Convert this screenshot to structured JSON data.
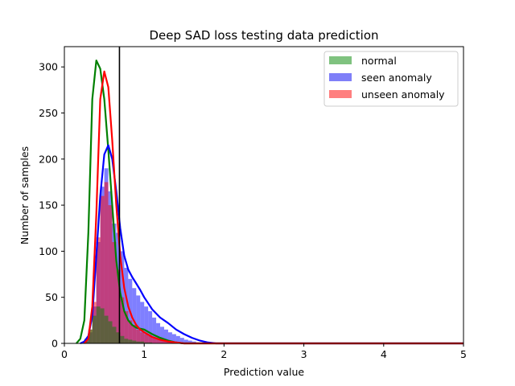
{
  "chart_data": {
    "type": "area",
    "title": "Deep SAD loss testing data prediction",
    "xlabel": "Prediction value",
    "ylabel": "Number of samples",
    "xlim": [
      0,
      5
    ],
    "ylim": [
      0,
      322
    ],
    "xticks": [
      "0",
      "1",
      "2",
      "3",
      "4",
      "5"
    ],
    "yticks": [
      "0",
      "50",
      "100",
      "150",
      "200",
      "250",
      "300"
    ],
    "threshold_line": 0.69,
    "grid": false,
    "legend_placement": "top-right",
    "legend": [
      {
        "name": "normal",
        "color": "#7fc27f"
      },
      {
        "name": "seen anomaly",
        "color": "#7f7ff8"
      },
      {
        "name": "unseen anomaly",
        "color": "#ff7f7f"
      }
    ],
    "histograms": [
      {
        "name": "seen anomaly",
        "fill": "#0000ff",
        "opacity": 0.5,
        "x": [
          0.2,
          0.25,
          0.3,
          0.35,
          0.4,
          0.45,
          0.5,
          0.55,
          0.6,
          0.65,
          0.7,
          0.75,
          0.8,
          0.85,
          0.9,
          0.95,
          1.0,
          1.05,
          1.1,
          1.15,
          1.2,
          1.25,
          1.3,
          1.35,
          1.4,
          1.45,
          1.5,
          1.55,
          1.6,
          1.65,
          1.7
        ],
        "values": [
          1,
          3,
          12,
          40,
          110,
          170,
          190,
          165,
          130,
          120,
          100,
          82,
          70,
          60,
          52,
          45,
          40,
          35,
          28,
          22,
          18,
          15,
          12,
          10,
          8,
          6,
          4,
          3,
          2,
          1,
          0
        ]
      },
      {
        "name": "unseen anomaly",
        "fill": "#ff0000",
        "opacity": 0.5,
        "x": [
          0.2,
          0.25,
          0.3,
          0.35,
          0.4,
          0.45,
          0.5,
          0.55,
          0.6,
          0.65,
          0.7,
          0.75,
          0.8,
          0.85,
          0.9,
          0.95,
          1.0,
          1.05,
          1.1,
          1.15,
          1.2,
          1.25,
          1.3,
          1.35,
          1.4
        ],
        "values": [
          0,
          2,
          15,
          45,
          115,
          160,
          175,
          150,
          110,
          80,
          50,
          35,
          25,
          20,
          15,
          12,
          10,
          8,
          6,
          5,
          4,
          3,
          2,
          1,
          0
        ]
      },
      {
        "name": "normal",
        "fill": "#008000",
        "opacity": 0.5,
        "x": [
          0.2,
          0.25,
          0.3,
          0.35,
          0.4,
          0.45,
          0.5,
          0.55,
          0.6,
          0.65,
          0.7,
          0.75,
          0.8,
          0.85,
          0.9,
          0.95,
          1.0,
          1.05,
          1.1
        ],
        "values": [
          0,
          5,
          15,
          30,
          40,
          38,
          30,
          24,
          18,
          12,
          8,
          5,
          4,
          3,
          2,
          2,
          1,
          1,
          0
        ]
      }
    ],
    "series": [
      {
        "name": "normal",
        "color": "#008000",
        "x": [
          0.15,
          0.2,
          0.25,
          0.3,
          0.35,
          0.4,
          0.45,
          0.5,
          0.55,
          0.6,
          0.65,
          0.7,
          0.75,
          0.8,
          0.85,
          0.9,
          0.95,
          1.0,
          1.1,
          1.2,
          1.3,
          1.4,
          1.5,
          5.0
        ],
        "y": [
          0,
          5,
          25,
          120,
          265,
          307,
          298,
          265,
          210,
          150,
          90,
          55,
          35,
          25,
          20,
          17,
          16,
          15,
          10,
          6,
          3,
          1,
          0,
          0
        ]
      },
      {
        "name": "seen anomaly",
        "color": "#0000ff",
        "x": [
          0.2,
          0.25,
          0.3,
          0.35,
          0.4,
          0.45,
          0.5,
          0.55,
          0.6,
          0.65,
          0.7,
          0.75,
          0.8,
          0.85,
          0.9,
          0.95,
          1.0,
          1.1,
          1.2,
          1.3,
          1.4,
          1.5,
          1.6,
          1.7,
          1.8,
          1.9,
          2.0,
          5.0
        ],
        "y": [
          0,
          2,
          8,
          30,
          95,
          160,
          205,
          215,
          200,
          165,
          125,
          95,
          80,
          72,
          65,
          58,
          50,
          37,
          28,
          22,
          15,
          10,
          6,
          3,
          1,
          0,
          0,
          0
        ]
      },
      {
        "name": "unseen anomaly",
        "color": "#ff0000",
        "x": [
          0.25,
          0.3,
          0.35,
          0.4,
          0.45,
          0.5,
          0.55,
          0.6,
          0.65,
          0.7,
          0.75,
          0.8,
          0.85,
          0.9,
          0.95,
          1.0,
          1.1,
          1.2,
          1.3,
          1.4,
          1.5,
          5.0
        ],
        "y": [
          0,
          5,
          40,
          140,
          265,
          295,
          278,
          220,
          150,
          95,
          60,
          40,
          28,
          20,
          15,
          12,
          7,
          4,
          2,
          1,
          0,
          0
        ]
      }
    ]
  }
}
